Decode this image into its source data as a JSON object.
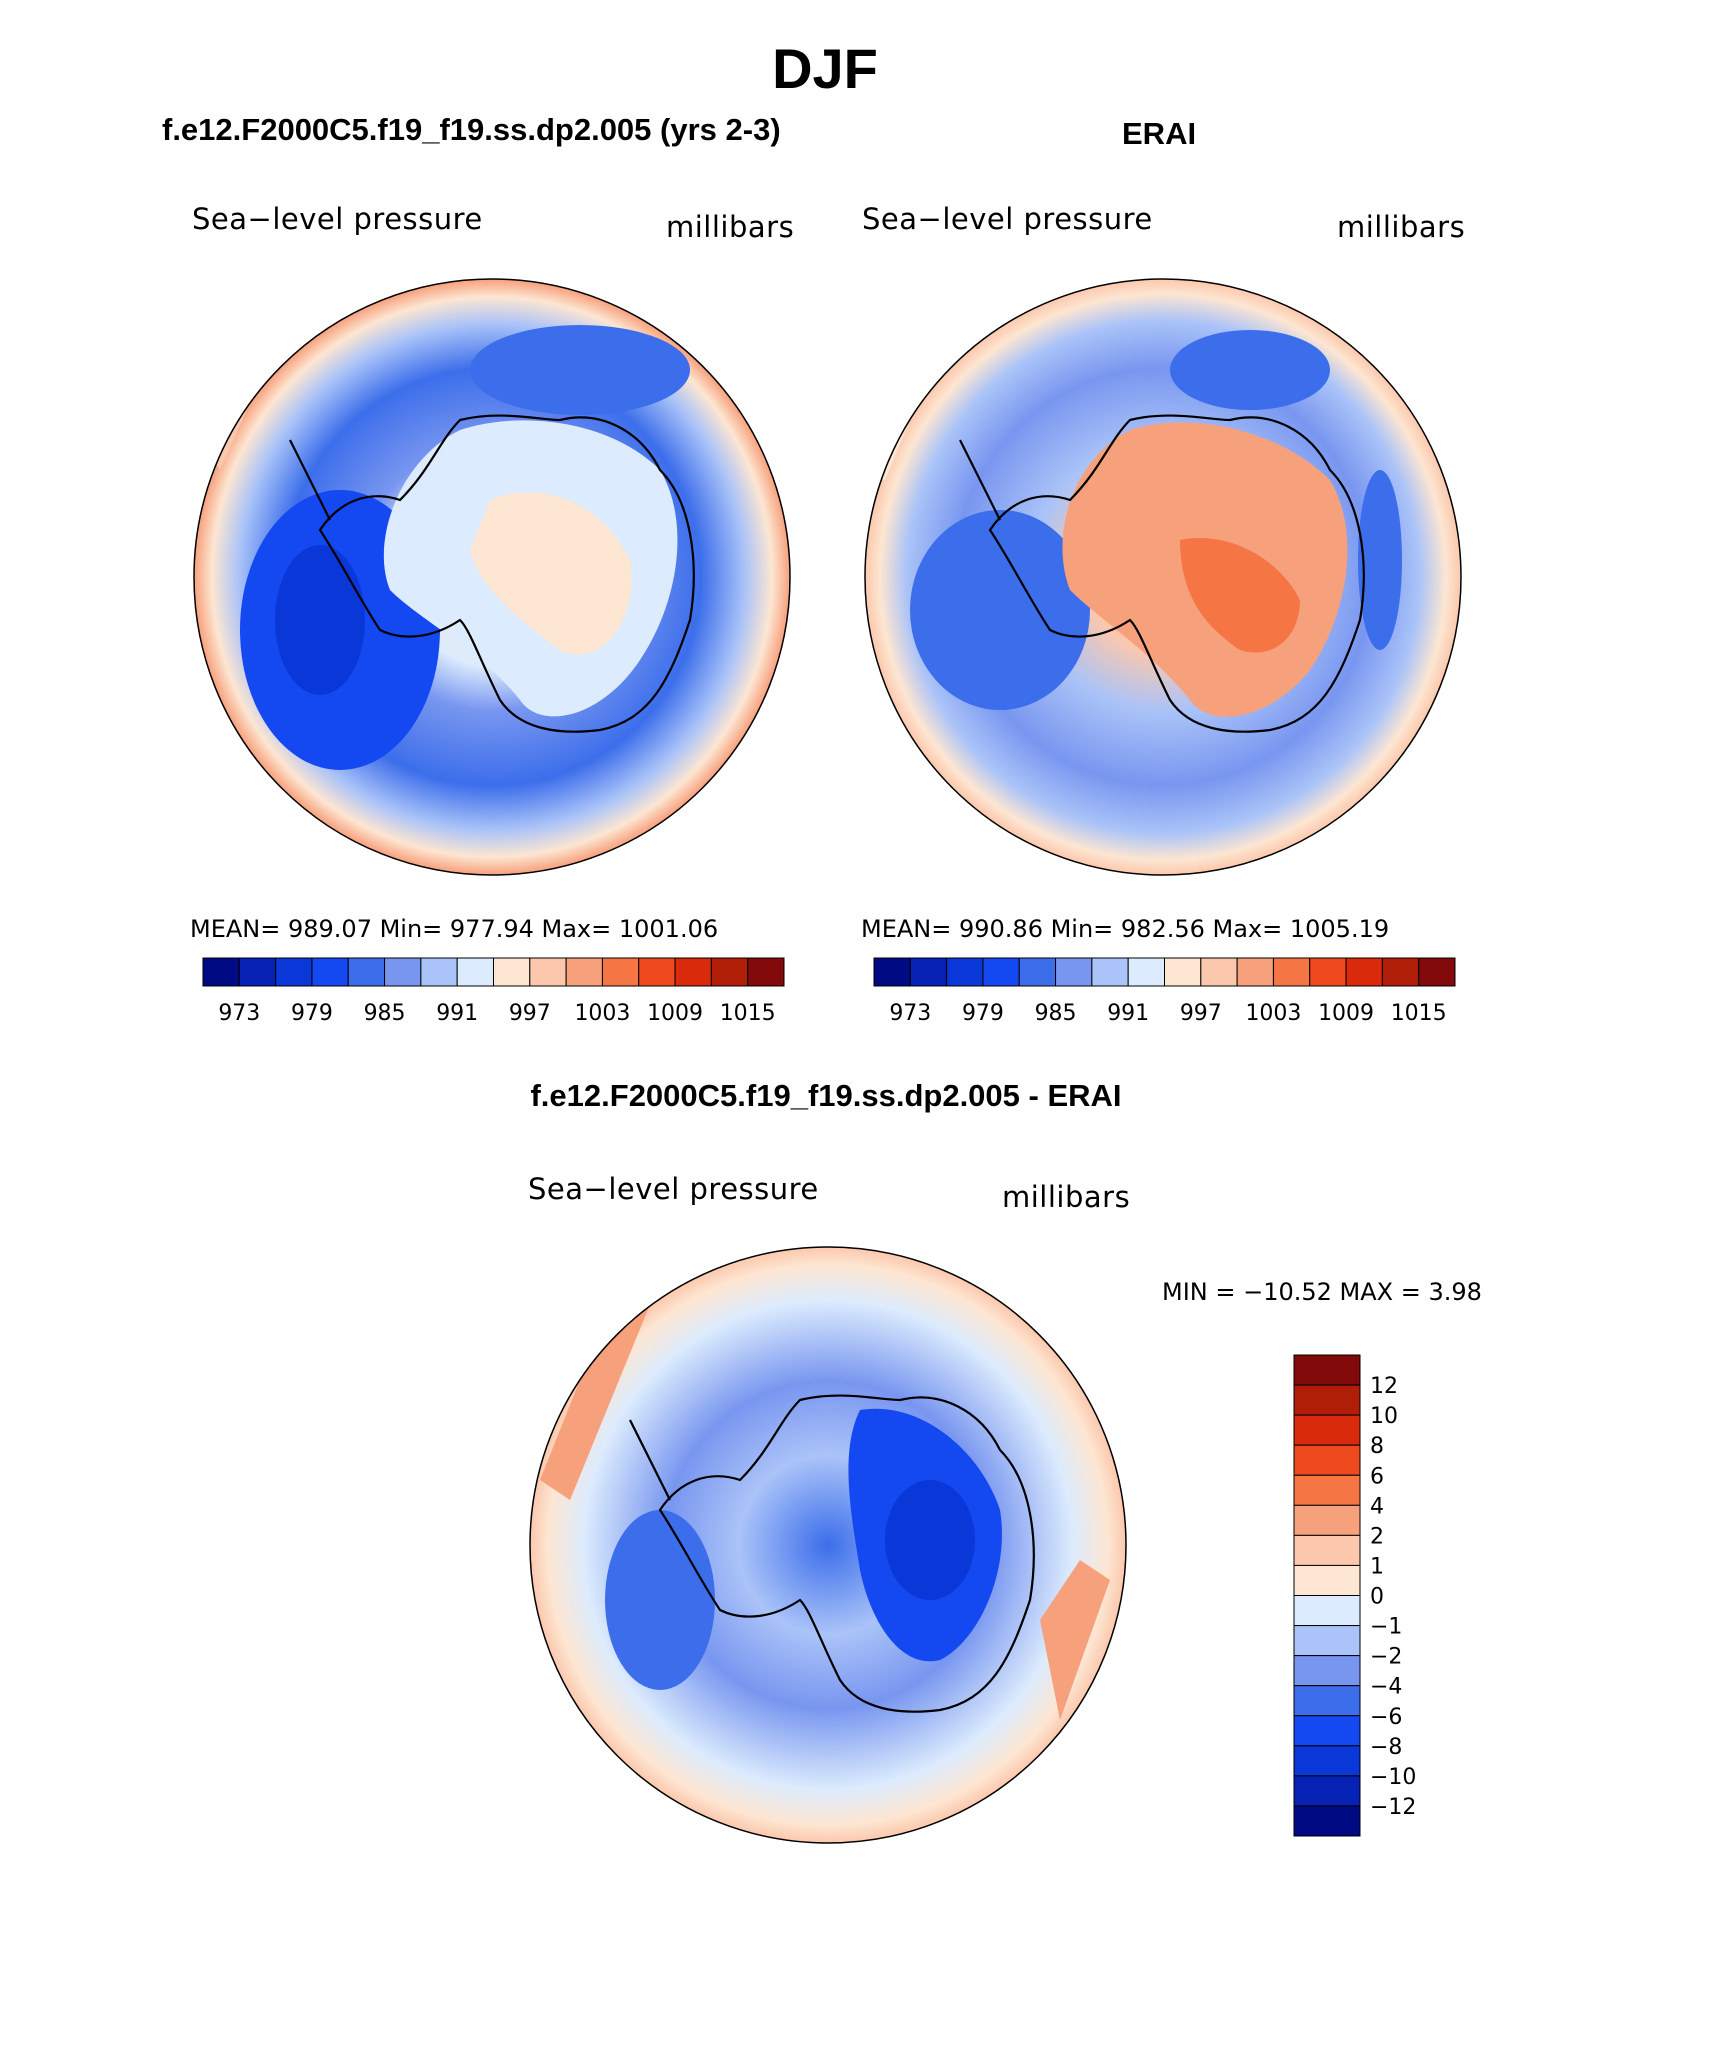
{
  "figure": {
    "main_title": "DJF",
    "panels": [
      {
        "id": "model",
        "case_title": "f.e12.F2000C5.f19_f19.ss.dp2.005 (yrs 2-3)",
        "left_label": "Sea−level pressure",
        "right_label": "millibars",
        "stats": "MEAN= 989.07   Min= 977.94   Max= 1001.06"
      },
      {
        "id": "obs",
        "case_title": "ERAI",
        "left_label": "Sea−level pressure",
        "right_label": "millibars",
        "stats": "MEAN= 990.86   Min= 982.56   Max= 1005.19"
      },
      {
        "id": "diff",
        "case_title": "f.e12.F2000C5.f19_f19.ss.dp2.005 - ERAI",
        "left_label": "Sea−level pressure",
        "right_label": "millibars",
        "stats": "MIN = −10.52 MAX =    3.98"
      }
    ]
  },
  "chart_data": [
    {
      "type": "heatmap",
      "title": "f.e12.F2000C5.f19_f19.ss.dp2.005 (yrs 2-3)",
      "variable": "Sea-level pressure",
      "units": "millibars",
      "projection": "South polar stereographic",
      "mean": 989.07,
      "min": 977.94,
      "max": 1001.06,
      "colorbar_ticks": [
        "973",
        "979",
        "985",
        "991",
        "997",
        "1003",
        "1009",
        "1015"
      ],
      "colorbar_levels": 16,
      "colorbar_colors": [
        "#000a82",
        "#0522b4",
        "#0a37d7",
        "#1448f0",
        "#3c6eeb",
        "#7896f0",
        "#aac3f8",
        "#dcebfd",
        "#fde6d2",
        "#fcc8ad",
        "#f7a07c",
        "#f57545",
        "#ee4a1e",
        "#d92a0c",
        "#b01e08",
        "#820a0a"
      ]
    },
    {
      "type": "heatmap",
      "title": "ERAI",
      "variable": "Sea-level pressure",
      "units": "millibars",
      "projection": "South polar stereographic",
      "mean": 990.86,
      "min": 982.56,
      "max": 1005.19,
      "colorbar_ticks": [
        "973",
        "979",
        "985",
        "991",
        "997",
        "1003",
        "1009",
        "1015"
      ],
      "colorbar_levels": 16,
      "colorbar_colors": [
        "#000a82",
        "#0522b4",
        "#0a37d7",
        "#1448f0",
        "#3c6eeb",
        "#7896f0",
        "#aac3f8",
        "#dcebfd",
        "#fde6d2",
        "#fcc8ad",
        "#f7a07c",
        "#f57545",
        "#ee4a1e",
        "#d92a0c",
        "#b01e08",
        "#820a0a"
      ]
    },
    {
      "type": "heatmap",
      "title": "f.e12.F2000C5.f19_f19.ss.dp2.005 - ERAI",
      "variable": "Sea-level pressure",
      "units": "millibars",
      "projection": "South polar stereographic",
      "min": -10.52,
      "max": 3.98,
      "colorbar_ticks": [
        "12",
        "10",
        "8",
        "6",
        "4",
        "2",
        "1",
        "0",
        "−1",
        "−2",
        "−4",
        "−6",
        "−8",
        "−10",
        "−12"
      ],
      "colorbar_levels": 16,
      "colorbar_colors": [
        "#820a0a",
        "#b01e08",
        "#d92a0c",
        "#ee4a1e",
        "#f57545",
        "#f7a07c",
        "#fcc8ad",
        "#fde6d2",
        "#dcebfd",
        "#aac3f8",
        "#7896f0",
        "#3c6eeb",
        "#1448f0",
        "#0a37d7",
        "#0522b4",
        "#000a82"
      ]
    }
  ]
}
